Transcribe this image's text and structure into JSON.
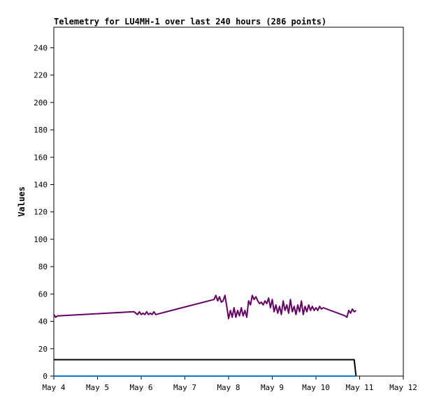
{
  "chart_data": {
    "type": "line",
    "title": "Telemetry for LU4MH-1 over last 240 hours (286 points)",
    "xlabel": "",
    "ylabel": "Values",
    "xlim": [
      "2024-05-04T00:00",
      "2024-05-12T00:00"
    ],
    "ylim": [
      0,
      255
    ],
    "x_ticks": [
      "May 4",
      "May 5",
      "May 6",
      "May 7",
      "May 8",
      "May 9",
      "May 10",
      "May 11",
      "May 12"
    ],
    "y_ticks": [
      0,
      20,
      40,
      60,
      80,
      100,
      120,
      140,
      160,
      180,
      200,
      220,
      240
    ],
    "grid": false,
    "series": [
      {
        "color": "#660066",
        "points": [
          [
            "2024-05-04T00:00",
            45
          ],
          [
            "2024-05-04T01:00",
            43
          ],
          [
            "2024-05-04T02:00",
            44
          ],
          [
            "2024-05-05T20:00",
            47
          ],
          [
            "2024-05-05T22:00",
            45
          ],
          [
            "2024-05-05T23:00",
            47
          ],
          [
            "2024-05-06T00:00",
            45
          ],
          [
            "2024-05-06T01:00",
            46
          ],
          [
            "2024-05-06T02:00",
            45
          ],
          [
            "2024-05-06T03:00",
            47
          ],
          [
            "2024-05-06T04:00",
            45
          ],
          [
            "2024-05-06T05:00",
            46
          ],
          [
            "2024-05-06T06:00",
            45
          ],
          [
            "2024-05-06T07:00",
            47
          ],
          [
            "2024-05-06T08:00",
            45
          ],
          [
            "2024-05-07T16:00",
            56
          ],
          [
            "2024-05-07T17:00",
            59
          ],
          [
            "2024-05-07T18:00",
            55
          ],
          [
            "2024-05-07T19:00",
            58
          ],
          [
            "2024-05-07T20:00",
            54
          ],
          [
            "2024-05-07T21:00",
            55
          ],
          [
            "2024-05-07T22:00",
            59
          ],
          [
            "2024-05-07T23:00",
            51
          ],
          [
            "2024-05-08T00:00",
            42
          ],
          [
            "2024-05-08T01:00",
            48
          ],
          [
            "2024-05-08T02:00",
            43
          ],
          [
            "2024-05-08T03:00",
            50
          ],
          [
            "2024-05-08T04:00",
            43
          ],
          [
            "2024-05-08T05:00",
            48
          ],
          [
            "2024-05-08T06:00",
            44
          ],
          [
            "2024-05-08T07:00",
            50
          ],
          [
            "2024-05-08T08:00",
            44
          ],
          [
            "2024-05-08T09:00",
            48
          ],
          [
            "2024-05-08T10:00",
            43
          ],
          [
            "2024-05-08T11:00",
            55
          ],
          [
            "2024-05-08T12:00",
            52
          ],
          [
            "2024-05-08T13:00",
            59
          ],
          [
            "2024-05-08T14:00",
            56
          ],
          [
            "2024-05-08T15:00",
            58
          ],
          [
            "2024-05-08T16:00",
            55
          ],
          [
            "2024-05-08T17:00",
            53
          ],
          [
            "2024-05-08T18:00",
            54
          ],
          [
            "2024-05-08T19:00",
            52
          ],
          [
            "2024-05-08T20:00",
            55
          ],
          [
            "2024-05-08T21:00",
            53
          ],
          [
            "2024-05-08T22:00",
            57
          ],
          [
            "2024-05-08T23:00",
            50
          ],
          [
            "2024-05-09T00:00",
            56
          ],
          [
            "2024-05-09T01:00",
            47
          ],
          [
            "2024-05-09T02:00",
            52
          ],
          [
            "2024-05-09T03:00",
            46
          ],
          [
            "2024-05-09T04:00",
            51
          ],
          [
            "2024-05-09T05:00",
            45
          ],
          [
            "2024-05-09T06:00",
            55
          ],
          [
            "2024-05-09T07:00",
            48
          ],
          [
            "2024-05-09T08:00",
            52
          ],
          [
            "2024-05-09T09:00",
            46
          ],
          [
            "2024-05-09T10:00",
            56
          ],
          [
            "2024-05-09T11:00",
            47
          ],
          [
            "2024-05-09T12:00",
            51
          ],
          [
            "2024-05-09T13:00",
            45
          ],
          [
            "2024-05-09T14:00",
            52
          ],
          [
            "2024-05-09T15:00",
            47
          ],
          [
            "2024-05-09T16:00",
            55
          ],
          [
            "2024-05-09T17:00",
            45
          ],
          [
            "2024-05-09T18:00",
            51
          ],
          [
            "2024-05-09T19:00",
            47
          ],
          [
            "2024-05-09T20:00",
            52
          ],
          [
            "2024-05-09T21:00",
            48
          ],
          [
            "2024-05-09T22:00",
            51
          ],
          [
            "2024-05-09T23:00",
            48
          ],
          [
            "2024-05-10T00:00",
            50
          ],
          [
            "2024-05-10T01:00",
            48
          ],
          [
            "2024-05-10T02:00",
            51
          ],
          [
            "2024-05-10T03:00",
            49
          ],
          [
            "2024-05-10T04:00",
            50
          ],
          [
            "2024-05-10T16:00",
            44
          ],
          [
            "2024-05-10T17:00",
            43
          ],
          [
            "2024-05-10T18:00",
            48
          ],
          [
            "2024-05-10T19:00",
            46
          ],
          [
            "2024-05-10T20:00",
            49
          ],
          [
            "2024-05-10T21:00",
            47
          ],
          [
            "2024-05-10T22:00",
            48
          ]
        ]
      },
      {
        "color": "#000000",
        "points": [
          [
            "2024-05-04T00:00",
            12
          ],
          [
            "2024-05-10T21:00",
            12
          ],
          [
            "2024-05-10T21:30",
            6
          ],
          [
            "2024-05-10T22:00",
            0
          ]
        ]
      },
      {
        "color": "#0077cc",
        "points": [
          [
            "2024-05-04T00:00",
            0
          ],
          [
            "2024-05-10T22:00",
            0
          ]
        ]
      }
    ]
  }
}
